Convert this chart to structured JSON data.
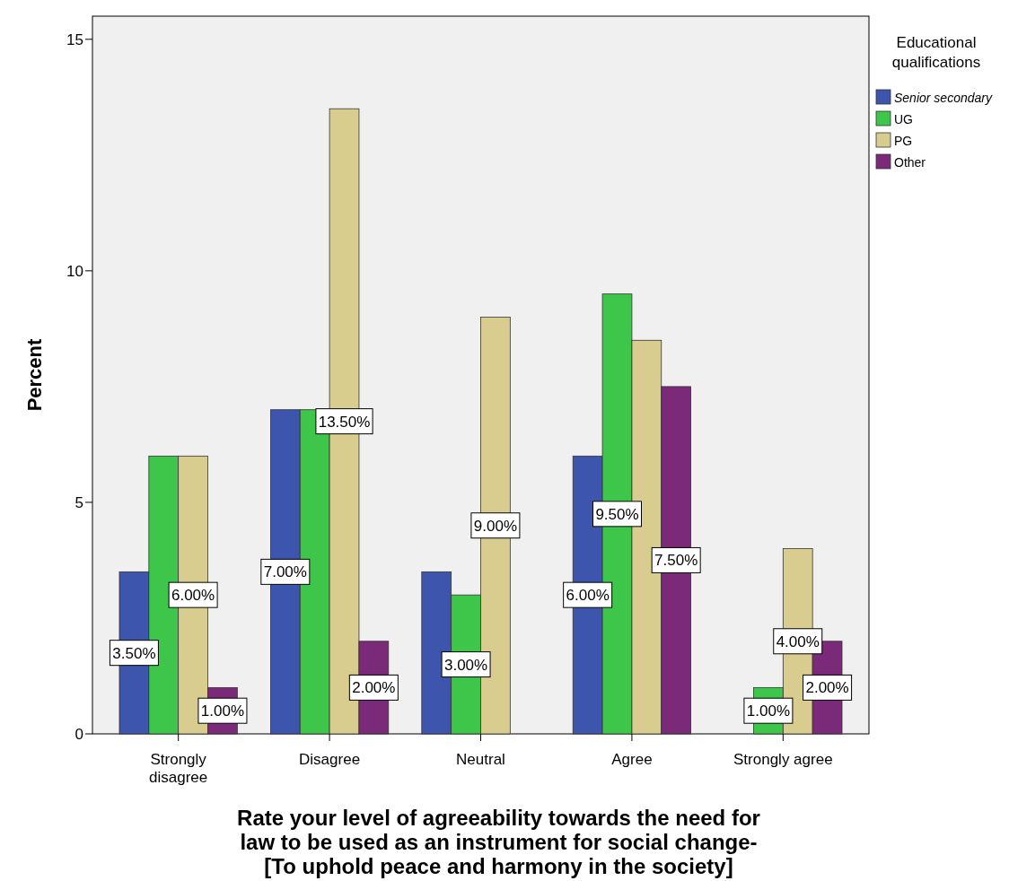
{
  "chart_data": {
    "type": "bar",
    "categories": [
      "Strongly\ndisagree",
      "Disagree",
      "Neutral",
      "Agree",
      "Strongly agree"
    ],
    "series": [
      {
        "name": "Senior secondary",
        "color": "#3d55ac",
        "values": [
          3.5,
          7,
          3.5,
          6,
          null
        ],
        "value_labels": [
          "3.50%",
          "7.00%",
          null,
          "6.00%",
          null
        ]
      },
      {
        "name": "UG",
        "color": "#3ec64a",
        "values": [
          6,
          7,
          3,
          9.5,
          1
        ],
        "value_labels": [
          null,
          null,
          "3.00%",
          "9.50%",
          "1.00%"
        ]
      },
      {
        "name": "PG",
        "color": "#d8cd8f",
        "values": [
          6,
          13.5,
          9,
          8.5,
          4
        ],
        "value_labels": [
          "6.00%",
          "13.50%",
          "9.00%",
          null,
          "4.00%"
        ]
      },
      {
        "name": "Other",
        "color": "#7a2a78",
        "values": [
          1,
          2,
          null,
          7.5,
          2
        ],
        "value_labels": [
          "1.00%",
          "2.00%",
          null,
          "7.50%",
          "2.00%"
        ]
      }
    ],
    "ylabel": "Percent",
    "xlabel": "Rate your level of agreeability towards the need for\nlaw to be used as an instrument for social change-\n[To uphold peace and harmony in the society]",
    "legend_title": "Educational\nqualifications",
    "legend": "top right",
    "ylim": [
      0,
      15.5
    ],
    "yticks": [
      0,
      5,
      10,
      15
    ],
    "grid": false
  }
}
